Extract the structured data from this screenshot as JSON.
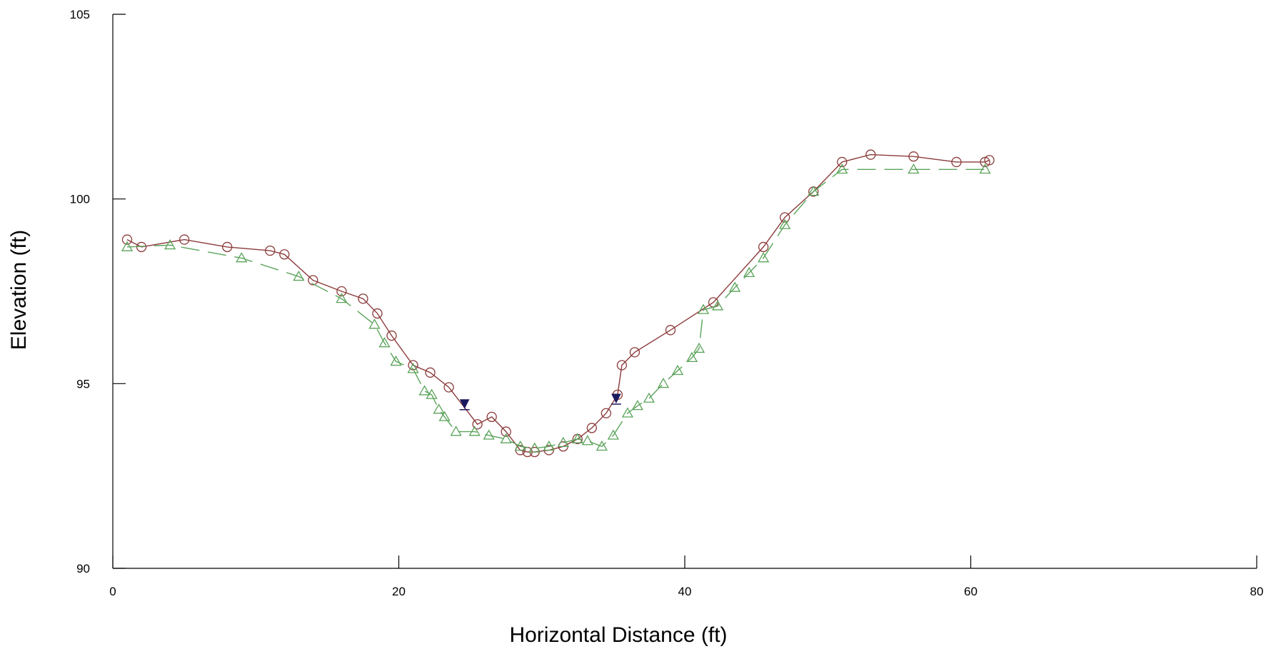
{
  "chart_data": {
    "type": "line",
    "xlabel": "Horizontal Distance (ft)",
    "ylabel": "Elevation (ft)",
    "xlim": [
      0,
      80
    ],
    "ylim": [
      90,
      105
    ],
    "x_ticks": [
      0,
      20,
      40,
      60,
      80
    ],
    "y_ticks": [
      90,
      95,
      100,
      105
    ],
    "x_tick_labels": [
      "0",
      "20",
      "40",
      "60",
      "80"
    ],
    "y_tick_labels": [
      "90",
      "95",
      "100",
      "105"
    ],
    "grid": false,
    "legend": "none",
    "series": [
      {
        "marker": "circle",
        "line_style": "solid",
        "color": "#8b3a3a",
        "points": [
          [
            1.0,
            98.9
          ],
          [
            2.0,
            98.7
          ],
          [
            5.0,
            98.9
          ],
          [
            8.0,
            98.7
          ],
          [
            11.0,
            98.6
          ],
          [
            12.0,
            98.5
          ],
          [
            14.0,
            97.8
          ],
          [
            16.0,
            97.5
          ],
          [
            17.5,
            97.3
          ],
          [
            18.5,
            96.9
          ],
          [
            19.5,
            96.3
          ],
          [
            21.0,
            95.5
          ],
          [
            22.2,
            95.3
          ],
          [
            23.5,
            94.9
          ],
          [
            25.5,
            93.9
          ],
          [
            26.5,
            94.1
          ],
          [
            27.5,
            93.7
          ],
          [
            28.5,
            93.2
          ],
          [
            29.0,
            93.15
          ],
          [
            29.5,
            93.15
          ],
          [
            30.5,
            93.2
          ],
          [
            31.5,
            93.3
          ],
          [
            32.5,
            93.5
          ],
          [
            33.5,
            93.8
          ],
          [
            34.5,
            94.2
          ],
          [
            35.3,
            94.7
          ],
          [
            35.6,
            95.5
          ],
          [
            36.5,
            95.85
          ],
          [
            39.0,
            96.45
          ],
          [
            42.0,
            97.2
          ],
          [
            45.5,
            98.7
          ],
          [
            47.0,
            99.5
          ],
          [
            49.0,
            100.2
          ],
          [
            51.0,
            101.0
          ],
          [
            53.0,
            101.2
          ],
          [
            56.0,
            101.15
          ],
          [
            59.0,
            101.0
          ],
          [
            61.0,
            101.0
          ],
          [
            61.3,
            101.05
          ]
        ]
      },
      {
        "marker": "triangle",
        "line_style": "dashed",
        "color": "#5aa35a",
        "points": [
          [
            1.0,
            98.7
          ],
          [
            4.0,
            98.75
          ],
          [
            9.0,
            98.4
          ],
          [
            13.0,
            97.9
          ],
          [
            16.0,
            97.3
          ],
          [
            18.3,
            96.6
          ],
          [
            19.0,
            96.1
          ],
          [
            19.8,
            95.6
          ],
          [
            21.0,
            95.4
          ],
          [
            21.8,
            94.8
          ],
          [
            22.3,
            94.7
          ],
          [
            22.8,
            94.3
          ],
          [
            23.2,
            94.1
          ],
          [
            24.0,
            93.7
          ],
          [
            25.3,
            93.7
          ],
          [
            26.3,
            93.6
          ],
          [
            27.5,
            93.5
          ],
          [
            28.5,
            93.3
          ],
          [
            29.5,
            93.25
          ],
          [
            30.5,
            93.3
          ],
          [
            31.5,
            93.4
          ],
          [
            32.5,
            93.5
          ],
          [
            33.2,
            93.45
          ],
          [
            34.2,
            93.3
          ],
          [
            35.0,
            93.6
          ],
          [
            36.0,
            94.2
          ],
          [
            36.7,
            94.4
          ],
          [
            37.5,
            94.6
          ],
          [
            38.5,
            95.0
          ],
          [
            39.5,
            95.35
          ],
          [
            40.5,
            95.7
          ],
          [
            41.0,
            95.95
          ],
          [
            41.3,
            97.0
          ],
          [
            42.3,
            97.1
          ],
          [
            43.5,
            97.6
          ],
          [
            44.5,
            98.0
          ],
          [
            45.5,
            98.4
          ],
          [
            47.0,
            99.3
          ],
          [
            49.0,
            100.2
          ],
          [
            51.0,
            100.8
          ],
          [
            56.0,
            100.8
          ],
          [
            61.0,
            100.8
          ]
        ]
      }
    ],
    "markers": [
      {
        "symbol": "water-surface-triangle",
        "color": "#1a1a5e",
        "x": 24.6,
        "y": 94.45
      },
      {
        "symbol": "water-surface-triangle",
        "color": "#1a1a5e",
        "x": 35.2,
        "y": 94.6
      }
    ]
  }
}
